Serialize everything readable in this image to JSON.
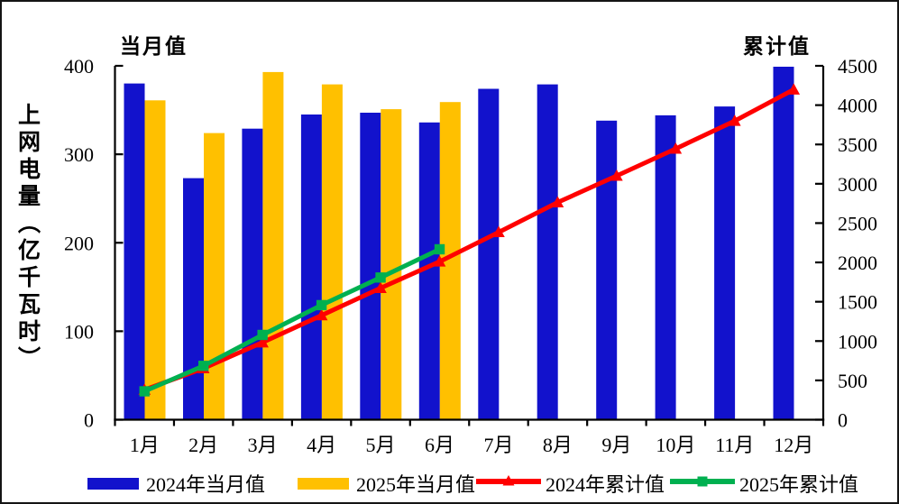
{
  "chart_data": {
    "type": "combo_bar_line",
    "categories": [
      "1月",
      "2月",
      "3月",
      "4月",
      "5月",
      "6月",
      "7月",
      "8月",
      "9月",
      "10月",
      "11月",
      "12月"
    ],
    "series": [
      {
        "name": "2024年当月值",
        "type": "bar",
        "axis": "left",
        "color": "#1212CC",
        "values": [
          380,
          273,
          329,
          345,
          347,
          336,
          374,
          379,
          338,
          344,
          354,
          399
        ]
      },
      {
        "name": "2025年当月值",
        "type": "bar",
        "axis": "left",
        "color": "#FFC000",
        "values": [
          361,
          324,
          393,
          379,
          351,
          359
        ]
      },
      {
        "name": "2024年累计值",
        "type": "line",
        "axis": "right",
        "color": "#FF0000",
        "marker": "triangle",
        "values": [
          380,
          653,
          982,
          1327,
          1674,
          2010,
          2384,
          2763,
          3101,
          3445,
          3799,
          4198
        ]
      },
      {
        "name": "2025年累计值",
        "type": "line",
        "axis": "right",
        "color": "#00B050",
        "marker": "square",
        "values": [
          361,
          685,
          1078,
          1457,
          1808,
          2167
        ]
      }
    ],
    "left_axis": {
      "title": "当月值",
      "label": "上网电量（亿千瓦时）",
      "min": 0,
      "max": 400,
      "ticks": [
        "0",
        "100",
        "200",
        "300",
        "400"
      ]
    },
    "right_axis": {
      "title": "累计值",
      "min": 0,
      "max": 4500,
      "ticks": [
        "0",
        "500",
        "1000",
        "1500",
        "2000",
        "2500",
        "3000",
        "3500",
        "4000",
        "4500"
      ]
    },
    "legend_position": "bottom",
    "grid": "off",
    "axis_color": "#000000"
  }
}
